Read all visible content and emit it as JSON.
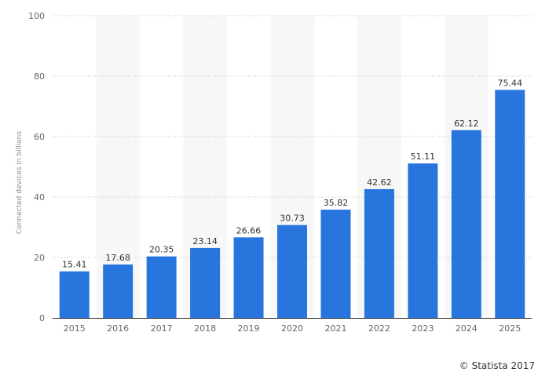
{
  "chart_data": {
    "type": "bar",
    "title": "",
    "xlabel": "",
    "ylabel": "Connected devices in billions",
    "categories": [
      "2015",
      "2016",
      "2017",
      "2018",
      "2019",
      "2020",
      "2021",
      "2022",
      "2023",
      "2024",
      "2025"
    ],
    "values": [
      15.41,
      17.68,
      20.35,
      23.14,
      26.66,
      30.73,
      35.82,
      42.62,
      51.11,
      62.12,
      75.44
    ],
    "value_labels": [
      "15.41",
      "17.68",
      "20.35",
      "23.14",
      "26.66",
      "30.73",
      "35.82",
      "42.62",
      "51.11",
      "62.12",
      "75.44"
    ],
    "ylim": [
      0,
      100
    ],
    "yticks": [
      0,
      20,
      40,
      60,
      80,
      100
    ],
    "ytick_labels": [
      "0",
      "20",
      "40",
      "60",
      "80",
      "100"
    ],
    "grid": true,
    "grid_style": "dotted",
    "alternating_bands": true,
    "colors": {
      "bar": "#2876dd",
      "band": "#f7f7f7",
      "grid": "#c4c4c4",
      "axis": "#333333"
    }
  },
  "credit": {
    "text": "© Statista 2017"
  }
}
